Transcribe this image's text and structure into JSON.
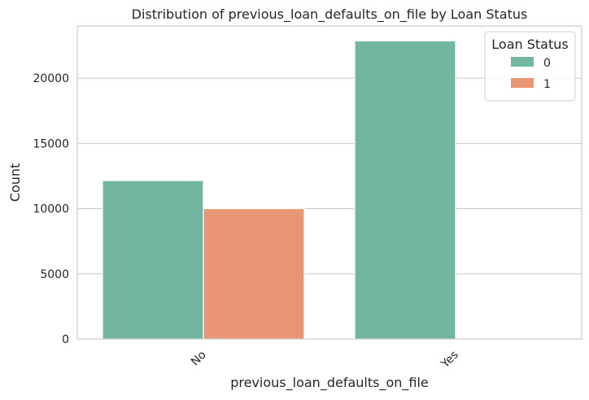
{
  "chart_data": {
    "type": "bar",
    "title": "Distribution of previous_loan_defaults_on_file by Loan Status",
    "xlabel": "previous_loan_defaults_on_file",
    "ylabel": "Count",
    "categories": [
      "No",
      "Yes"
    ],
    "series": [
      {
        "name": "0",
        "values": [
          12150,
          22860
        ],
        "color": "#72b6a1"
      },
      {
        "name": "1",
        "values": [
          10000,
          0
        ],
        "color": "#e99675"
      }
    ],
    "ylim": [
      0,
      24000
    ],
    "yticks": [
      0,
      5000,
      10000,
      15000,
      20000
    ],
    "legend": {
      "title": "Loan Status",
      "placement": "top-right"
    },
    "grid": "y",
    "x_tick_rotation": 45
  }
}
